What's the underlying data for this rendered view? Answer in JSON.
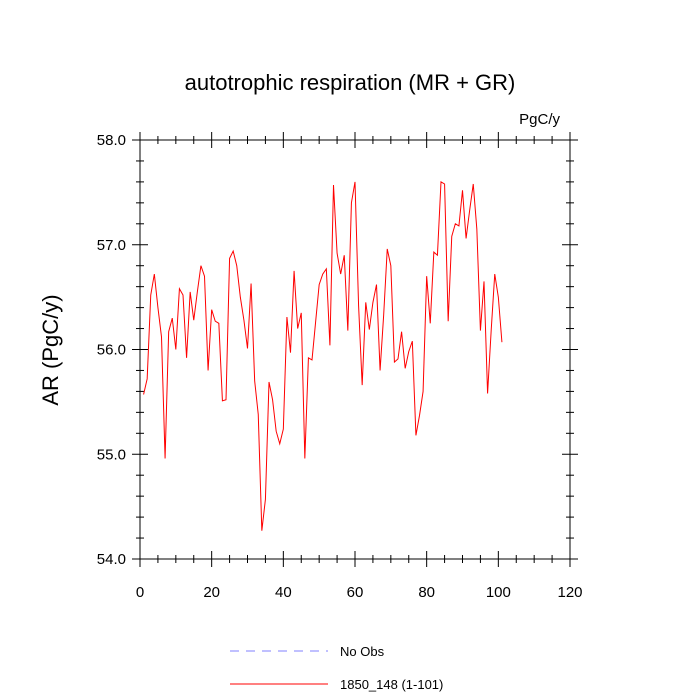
{
  "chart_data": {
    "type": "line",
    "title": "autotrophic respiration (MR + GR)",
    "units": "PgC/y",
    "xlabel": "",
    "ylabel": "AR  (PgC/y)",
    "xlim": [
      0,
      120
    ],
    "ylim": [
      54.0,
      58.0
    ],
    "xticks": [
      0,
      20,
      40,
      60,
      80,
      100,
      120
    ],
    "xtick_labels": [
      "0",
      "20",
      "40",
      "60",
      "80",
      "100",
      "120"
    ],
    "yticks": [
      54.0,
      55.0,
      56.0,
      57.0,
      58.0
    ],
    "ytick_labels": [
      "54.0",
      "55.0",
      "56.0",
      "57.0",
      "58.0"
    ],
    "grid": false,
    "legend_position": "bottom-center",
    "legend": [
      {
        "label": "No Obs",
        "color": "#8080ff",
        "style": "dashed"
      },
      {
        "label": "1850_148 (1-101)",
        "color": "#ff0000",
        "style": "solid"
      }
    ],
    "series": [
      {
        "name": "1850_148 (1-101)",
        "color": "#ff0000",
        "x_start": 1,
        "values": [
          55.57,
          55.72,
          56.52,
          56.72,
          56.4,
          56.12,
          54.96,
          56.17,
          56.3,
          56.0,
          56.58,
          56.52,
          55.92,
          56.55,
          56.28,
          56.55,
          56.8,
          56.7,
          55.8,
          56.38,
          56.27,
          56.25,
          55.51,
          55.52,
          56.87,
          56.94,
          56.8,
          56.5,
          56.28,
          56.01,
          56.63,
          55.7,
          55.38,
          54.27,
          54.57,
          55.69,
          55.52,
          55.22,
          55.1,
          55.24,
          56.31,
          55.97,
          56.75,
          56.2,
          56.35,
          54.96,
          55.92,
          55.9,
          56.26,
          56.62,
          56.72,
          56.77,
          56.04,
          57.57,
          56.92,
          56.72,
          56.9,
          56.18,
          57.4,
          57.6,
          56.42,
          55.66,
          56.45,
          56.19,
          56.45,
          56.62,
          55.8,
          56.33,
          56.96,
          56.8,
          55.88,
          55.91,
          56.17,
          55.82,
          55.98,
          56.08,
          55.18,
          55.37,
          55.6,
          56.7,
          56.25,
          56.93,
          56.9,
          57.6,
          57.58,
          56.27,
          57.08,
          57.2,
          57.18,
          57.52,
          57.06,
          57.33,
          57.58,
          57.15,
          56.18,
          56.65,
          55.58,
          56.18,
          56.72,
          56.5,
          56.07
        ]
      }
    ]
  }
}
